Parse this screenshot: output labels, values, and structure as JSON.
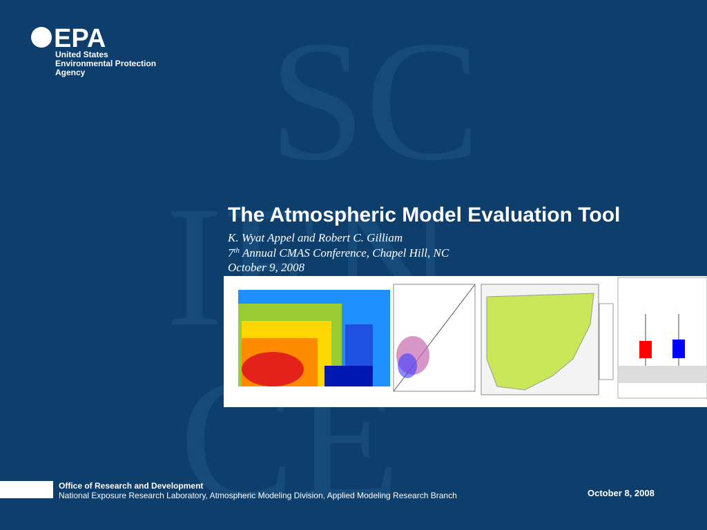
{
  "logo": {
    "mark": "EPA",
    "lines": [
      "United States",
      "Environmental Protection",
      "Agency"
    ]
  },
  "watermark": [
    "SC",
    "IEN",
    "CE"
  ],
  "title": "The Atmospheric Model Evaluation Tool",
  "authors": "K. Wyat Appel and Robert C. Gilliam",
  "conference": {
    "number": "7",
    "superscript": "th",
    "rest": " Annual CMAS Conference, Chapel Hill, NC"
  },
  "date": "October 9, 2008",
  "footer": {
    "office": "Office of Research and Development",
    "division": "National Exposure Research Laboratory, Atmospheric Modeling Division, Applied Modeling Research Branch",
    "date": "October 8, 2008"
  }
}
